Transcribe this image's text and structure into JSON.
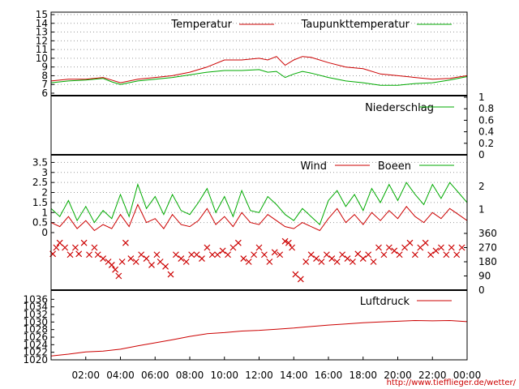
{
  "footer_url": "http://www.tiefflieger.de/wetter/",
  "colors": {
    "red": "#cc0000",
    "green": "#00aa00"
  },
  "chart_data": [
    {
      "type": "line",
      "x_range": [
        "00:00",
        "24:00"
      ],
      "ylim": [
        6,
        15
      ],
      "yticks": [
        6,
        7,
        8,
        9,
        10,
        11,
        12,
        13,
        14,
        15
      ],
      "grid": true,
      "legend": "top-right",
      "series": [
        {
          "name": "Temperatur",
          "color": "red",
          "x": [
            0,
            1,
            2,
            3,
            3.5,
            4,
            5,
            6,
            7,
            8,
            9,
            10,
            11,
            12,
            12.5,
            13,
            13.5,
            14,
            14.5,
            15,
            16,
            17,
            18,
            19,
            20,
            21,
            22,
            23,
            24
          ],
          "y": [
            7.4,
            7.6,
            7.6,
            7.8,
            7.5,
            7.2,
            7.6,
            7.8,
            8.0,
            8.4,
            9.0,
            9.8,
            9.8,
            10.0,
            9.8,
            10.2,
            9.2,
            9.8,
            10.2,
            10.1,
            9.5,
            9.0,
            8.8,
            8.2,
            8.0,
            7.8,
            7.6,
            7.7,
            8.0
          ]
        },
        {
          "name": "Taupunkttemperatur",
          "color": "green",
          "x": [
            0,
            1,
            2,
            3,
            3.5,
            4,
            5,
            6,
            7,
            8,
            9,
            10,
            11,
            12,
            12.5,
            13,
            13.5,
            14,
            14.5,
            15,
            16,
            17,
            18,
            19,
            20,
            21,
            22,
            23,
            24
          ],
          "y": [
            7.2,
            7.4,
            7.5,
            7.7,
            7.3,
            7.0,
            7.4,
            7.6,
            7.8,
            8.1,
            8.4,
            8.6,
            8.6,
            8.7,
            8.4,
            8.5,
            7.8,
            8.2,
            8.5,
            8.3,
            7.8,
            7.4,
            7.2,
            6.9,
            6.9,
            7.1,
            7.2,
            7.5,
            7.9
          ]
        }
      ]
    },
    {
      "type": "line",
      "x_range": [
        "00:00",
        "24:00"
      ],
      "ylim": [
        0,
        1
      ],
      "yticks": [
        "0",
        "0.2",
        "0.4",
        "0.6",
        "0.8",
        "1"
      ],
      "legend": "top-right",
      "series": [
        {
          "name": "Niederschlag",
          "color": "green",
          "x": [
            0,
            24
          ],
          "y": [
            0,
            0
          ]
        }
      ]
    },
    {
      "type": "line",
      "x_range": [
        "00:00",
        "24:00"
      ],
      "ylim": [
        0,
        3.8
      ],
      "yticks": [
        "0",
        "0.5",
        "1",
        "1.5",
        "2",
        "2.5",
        "3",
        "3.5"
      ],
      "y2ticks": [
        "1",
        "2"
      ],
      "grid": true,
      "legend": "top-right",
      "series": [
        {
          "name": "Wind",
          "color": "red",
          "x": [
            0,
            0.5,
            1,
            1.5,
            2,
            2.5,
            3,
            3.5,
            4,
            4.5,
            5,
            5.5,
            6,
            6.5,
            7,
            7.5,
            8,
            8.5,
            9,
            9.5,
            10,
            10.5,
            11,
            11.5,
            12,
            12.5,
            13,
            13.5,
            14,
            14.5,
            15,
            15.5,
            16,
            16.5,
            17,
            17.5,
            18,
            18.5,
            19,
            19.5,
            20,
            20.5,
            21,
            21.5,
            22,
            22.5,
            23,
            23.5,
            24
          ],
          "y": [
            0.5,
            0.3,
            0.8,
            0.2,
            0.6,
            0.1,
            0.4,
            0.2,
            0.9,
            0.3,
            1.4,
            0.5,
            0.7,
            0.2,
            0.9,
            0.4,
            0.3,
            0.6,
            1.2,
            0.4,
            0.8,
            0.3,
            1.0,
            0.5,
            0.4,
            0.9,
            0.6,
            0.3,
            0.2,
            0.5,
            0.3,
            0.1,
            0.7,
            1.2,
            0.5,
            0.9,
            0.4,
            1.0,
            0.6,
            1.1,
            0.7,
            1.3,
            0.8,
            0.5,
            1.0,
            0.7,
            1.2,
            0.9,
            0.6
          ]
        },
        {
          "name": "Boeen",
          "color": "green",
          "x": [
            0,
            0.5,
            1,
            1.5,
            2,
            2.5,
            3,
            3.5,
            4,
            4.5,
            5,
            5.5,
            6,
            6.5,
            7,
            7.5,
            8,
            8.5,
            9,
            9.5,
            10,
            10.5,
            11,
            11.5,
            12,
            12.5,
            13,
            13.5,
            14,
            14.5,
            15,
            15.5,
            16,
            16.5,
            17,
            17.5,
            18,
            18.5,
            19,
            19.5,
            20,
            20.5,
            21,
            21.5,
            22,
            22.5,
            23,
            23.5,
            24
          ],
          "y": [
            1.2,
            0.8,
            1.6,
            0.6,
            1.3,
            0.5,
            1.1,
            0.7,
            1.9,
            0.8,
            2.4,
            1.2,
            1.8,
            0.9,
            1.9,
            1.1,
            0.9,
            1.5,
            2.2,
            1.0,
            1.8,
            0.8,
            2.1,
            1.1,
            1.0,
            1.8,
            1.4,
            0.9,
            0.6,
            1.2,
            0.8,
            0.4,
            1.6,
            2.1,
            1.3,
            1.9,
            1.1,
            2.2,
            1.5,
            2.4,
            1.6,
            2.5,
            1.9,
            1.4,
            2.4,
            1.7,
            2.5,
            2.0,
            1.5
          ]
        }
      ]
    },
    {
      "type": "scatter",
      "x_range": [
        "00:00",
        "24:00"
      ],
      "ylim": [
        0,
        360
      ],
      "yticks": [
        "0",
        "90",
        "180",
        "270",
        "360"
      ],
      "series": [
        {
          "color": "red",
          "x": [
            0.1,
            0.3,
            0.5,
            0.8,
            1.1,
            1.4,
            1.6,
            1.9,
            2.2,
            2.5,
            2.7,
            3.0,
            3.3,
            3.5,
            3.7,
            3.9,
            4.1,
            4.3,
            4.6,
            4.9,
            5.2,
            5.5,
            5.8,
            6.1,
            6.3,
            6.6,
            6.9,
            7.2,
            7.5,
            7.8,
            8.1,
            8.4,
            8.7,
            9.0,
            9.3,
            9.6,
            9.9,
            10.2,
            10.5,
            10.8,
            11.1,
            11.4,
            11.7,
            12.0,
            12.3,
            12.6,
            12.9,
            13.2,
            13.5,
            13.7,
            13.9,
            14.1,
            14.4,
            14.7,
            15.0,
            15.3,
            15.6,
            15.9,
            16.2,
            16.5,
            16.8,
            17.1,
            17.4,
            17.7,
            18.0,
            18.3,
            18.6,
            18.9,
            19.2,
            19.5,
            19.8,
            20.1,
            20.4,
            20.7,
            21.0,
            21.3,
            21.6,
            21.9,
            22.2,
            22.5,
            22.8,
            23.1,
            23.4,
            23.7
          ],
          "y": [
            230,
            270,
            300,
            270,
            225,
            270,
            230,
            300,
            225,
            270,
            225,
            200,
            180,
            160,
            130,
            90,
            180,
            300,
            200,
            180,
            225,
            200,
            160,
            225,
            180,
            150,
            100,
            225,
            200,
            180,
            225,
            225,
            200,
            270,
            225,
            225,
            250,
            225,
            270,
            300,
            200,
            180,
            225,
            270,
            225,
            180,
            240,
            225,
            310,
            300,
            270,
            100,
            70,
            180,
            225,
            200,
            180,
            225,
            200,
            180,
            225,
            200,
            180,
            230,
            200,
            225,
            180,
            270,
            225,
            270,
            250,
            225,
            270,
            300,
            225,
            270,
            300,
            225,
            250,
            270,
            225,
            270,
            225,
            270
          ]
        }
      ]
    },
    {
      "type": "line",
      "x_range": [
        "00:00",
        "24:00"
      ],
      "ylim": [
        1020,
        1038
      ],
      "yticks": [
        "1020",
        "1022",
        "1024",
        "1026",
        "1028",
        "1030",
        "1032",
        "1034",
        "1036"
      ],
      "legend": "top-right",
      "xticks": [
        "02:00",
        "04:00",
        "06:00",
        "08:00",
        "10:00",
        "12:00",
        "14:00",
        "16:00",
        "18:00",
        "20:00",
        "22:00",
        "00:00"
      ],
      "series": [
        {
          "name": "Luftdruck",
          "color": "red",
          "x": [
            0,
            1,
            2,
            3,
            4,
            5,
            6,
            7,
            8,
            9,
            10,
            11,
            12,
            13,
            14,
            15,
            16,
            17,
            18,
            19,
            20,
            21,
            22,
            23,
            24
          ],
          "y": [
            1021.0,
            1021.5,
            1022.1,
            1022.3,
            1022.8,
            1023.7,
            1024.5,
            1025.3,
            1026.2,
            1026.9,
            1027.2,
            1027.6,
            1027.8,
            1028.1,
            1028.4,
            1028.8,
            1029.2,
            1029.5,
            1029.8,
            1030.0,
            1030.2,
            1030.4,
            1030.3,
            1030.4,
            1030.1
          ]
        }
      ]
    }
  ]
}
